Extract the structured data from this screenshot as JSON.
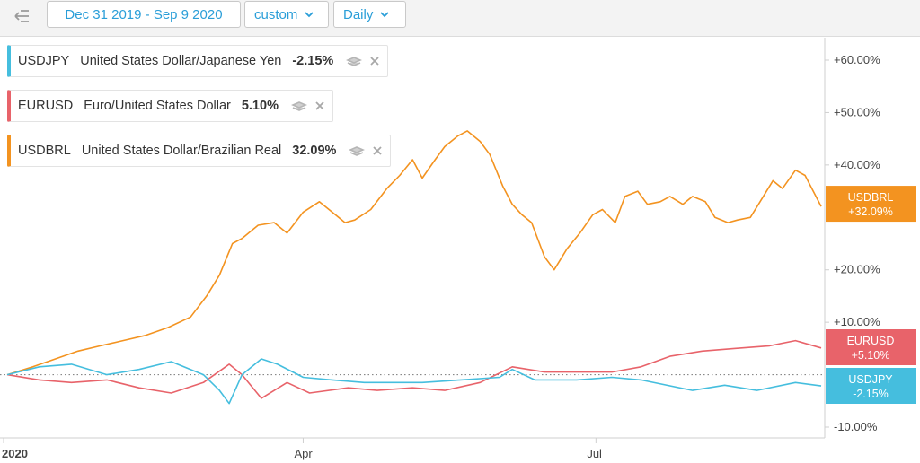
{
  "toolbar": {
    "date_range": "Dec 31 2019 - Sep 9 2020",
    "range_mode": "custom",
    "interval": "Daily"
  },
  "colors": {
    "usdjpy": "#45bede",
    "eurusd": "#e8636a",
    "usdbrl": "#f39320",
    "accent": "#2a9ed8"
  },
  "legend": [
    {
      "symbol": "USDJPY",
      "name": "United States Dollar/Japanese Yen",
      "change": "-2.15%"
    },
    {
      "symbol": "EURUSD",
      "name": "Euro/United States Dollar",
      "change": "5.10%"
    },
    {
      "symbol": "USDBRL",
      "name": "United States Dollar/Brazilian Real",
      "change": "32.09%"
    }
  ],
  "chart_data": {
    "type": "line",
    "x_tick_labels": [
      "2020",
      "Apr",
      "Jul"
    ],
    "y_ticks": [
      -10,
      10,
      20,
      40,
      50,
      60
    ],
    "y_tick_labels": [
      "-10.00%",
      "+10.00%",
      "+20.00%",
      "+40.00%",
      "+50.00%",
      "+60.00%"
    ],
    "ylim": [
      -10,
      60
    ],
    "baseline": 0,
    "x_domain": [
      "2019-12-31",
      "2020-09-09"
    ],
    "grid": false,
    "series": [
      {
        "name": "USDBRL",
        "badge": [
          "USDBRL",
          "+32.09%"
        ],
        "last": 32.09,
        "points": [
          [
            "2019-12-31",
            0
          ],
          [
            "2020-01-08",
            1.5
          ],
          [
            "2020-01-15",
            3
          ],
          [
            "2020-01-22",
            4.5
          ],
          [
            "2020-01-29",
            5.5
          ],
          [
            "2020-02-05",
            6.5
          ],
          [
            "2020-02-12",
            7.5
          ],
          [
            "2020-02-19",
            9
          ],
          [
            "2020-02-26",
            11
          ],
          [
            "2020-03-02",
            15
          ],
          [
            "2020-03-06",
            19
          ],
          [
            "2020-03-10",
            25
          ],
          [
            "2020-03-13",
            26
          ],
          [
            "2020-03-18",
            28.5
          ],
          [
            "2020-03-23",
            29
          ],
          [
            "2020-03-27",
            27
          ],
          [
            "2020-04-01",
            31
          ],
          [
            "2020-04-06",
            33
          ],
          [
            "2020-04-10",
            31
          ],
          [
            "2020-04-14",
            29
          ],
          [
            "2020-04-17",
            29.5
          ],
          [
            "2020-04-22",
            31.5
          ],
          [
            "2020-04-27",
            35.5
          ],
          [
            "2020-05-01",
            38
          ],
          [
            "2020-05-05",
            41
          ],
          [
            "2020-05-08",
            37.5
          ],
          [
            "2020-05-12",
            41
          ],
          [
            "2020-05-15",
            43.5
          ],
          [
            "2020-05-19",
            45.5
          ],
          [
            "2020-05-22",
            46.5
          ],
          [
            "2020-05-26",
            44.5
          ],
          [
            "2020-05-29",
            42
          ],
          [
            "2020-06-02",
            36
          ],
          [
            "2020-06-05",
            32.5
          ],
          [
            "2020-06-08",
            30.5
          ],
          [
            "2020-06-11",
            29
          ],
          [
            "2020-06-15",
            22.5
          ],
          [
            "2020-06-18",
            20
          ],
          [
            "2020-06-22",
            24
          ],
          [
            "2020-06-26",
            27
          ],
          [
            "2020-06-30",
            30.5
          ],
          [
            "2020-07-03",
            31.5
          ],
          [
            "2020-07-07",
            29
          ],
          [
            "2020-07-10",
            34
          ],
          [
            "2020-07-14",
            35
          ],
          [
            "2020-07-17",
            32.5
          ],
          [
            "2020-07-21",
            33
          ],
          [
            "2020-07-24",
            34
          ],
          [
            "2020-07-28",
            32.5
          ],
          [
            "2020-07-31",
            34
          ],
          [
            "2020-08-04",
            33
          ],
          [
            "2020-08-07",
            30
          ],
          [
            "2020-08-11",
            29
          ],
          [
            "2020-08-14",
            29.5
          ],
          [
            "2020-08-18",
            30
          ],
          [
            "2020-08-21",
            33
          ],
          [
            "2020-08-25",
            37
          ],
          [
            "2020-08-28",
            35.5
          ],
          [
            "2020-09-01",
            39
          ],
          [
            "2020-09-04",
            38
          ],
          [
            "2020-09-09",
            32.09
          ]
        ]
      },
      {
        "name": "EURUSD",
        "badge": [
          "EURUSD",
          "+5.10%"
        ],
        "last": 5.1,
        "points": [
          [
            "2019-12-31",
            0
          ],
          [
            "2020-01-10",
            -1
          ],
          [
            "2020-01-20",
            -1.5
          ],
          [
            "2020-01-31",
            -1
          ],
          [
            "2020-02-10",
            -2.5
          ],
          [
            "2020-02-20",
            -3.5
          ],
          [
            "2020-03-01",
            -1.5
          ],
          [
            "2020-03-09",
            2
          ],
          [
            "2020-03-13",
            0
          ],
          [
            "2020-03-19",
            -4.5
          ],
          [
            "2020-03-27",
            -1.5
          ],
          [
            "2020-04-03",
            -3.5
          ],
          [
            "2020-04-15",
            -2.5
          ],
          [
            "2020-04-24",
            -3
          ],
          [
            "2020-05-05",
            -2.5
          ],
          [
            "2020-05-15",
            -3
          ],
          [
            "2020-05-26",
            -1.5
          ],
          [
            "2020-06-05",
            1.5
          ],
          [
            "2020-06-15",
            0.5
          ],
          [
            "2020-06-25",
            0.5
          ],
          [
            "2020-07-06",
            0.5
          ],
          [
            "2020-07-15",
            1.5
          ],
          [
            "2020-07-24",
            3.5
          ],
          [
            "2020-08-03",
            4.5
          ],
          [
            "2020-08-13",
            5
          ],
          [
            "2020-08-24",
            5.5
          ],
          [
            "2020-09-01",
            6.5
          ],
          [
            "2020-09-09",
            5.1
          ]
        ]
      },
      {
        "name": "USDJPY",
        "badge": [
          "USDJPY",
          "-2.15%"
        ],
        "last": -2.15,
        "points": [
          [
            "2019-12-31",
            0
          ],
          [
            "2020-01-10",
            1.5
          ],
          [
            "2020-01-20",
            2
          ],
          [
            "2020-01-31",
            0
          ],
          [
            "2020-02-10",
            1
          ],
          [
            "2020-02-20",
            2.5
          ],
          [
            "2020-03-01",
            0
          ],
          [
            "2020-03-06",
            -3
          ],
          [
            "2020-03-09",
            -5.5
          ],
          [
            "2020-03-13",
            0
          ],
          [
            "2020-03-19",
            3
          ],
          [
            "2020-03-24",
            2
          ],
          [
            "2020-04-01",
            -0.5
          ],
          [
            "2020-04-10",
            -1
          ],
          [
            "2020-04-20",
            -1.5
          ],
          [
            "2020-04-30",
            -1.5
          ],
          [
            "2020-05-08",
            -1.5
          ],
          [
            "2020-05-20",
            -1
          ],
          [
            "2020-06-01",
            -0.5
          ],
          [
            "2020-06-05",
            1
          ],
          [
            "2020-06-12",
            -1
          ],
          [
            "2020-06-25",
            -1
          ],
          [
            "2020-07-06",
            -0.5
          ],
          [
            "2020-07-15",
            -1
          ],
          [
            "2020-07-31",
            -3
          ],
          [
            "2020-08-10",
            -2
          ],
          [
            "2020-08-20",
            -3
          ],
          [
            "2020-09-01",
            -1.5
          ],
          [
            "2020-09-09",
            -2.15
          ]
        ]
      }
    ]
  }
}
